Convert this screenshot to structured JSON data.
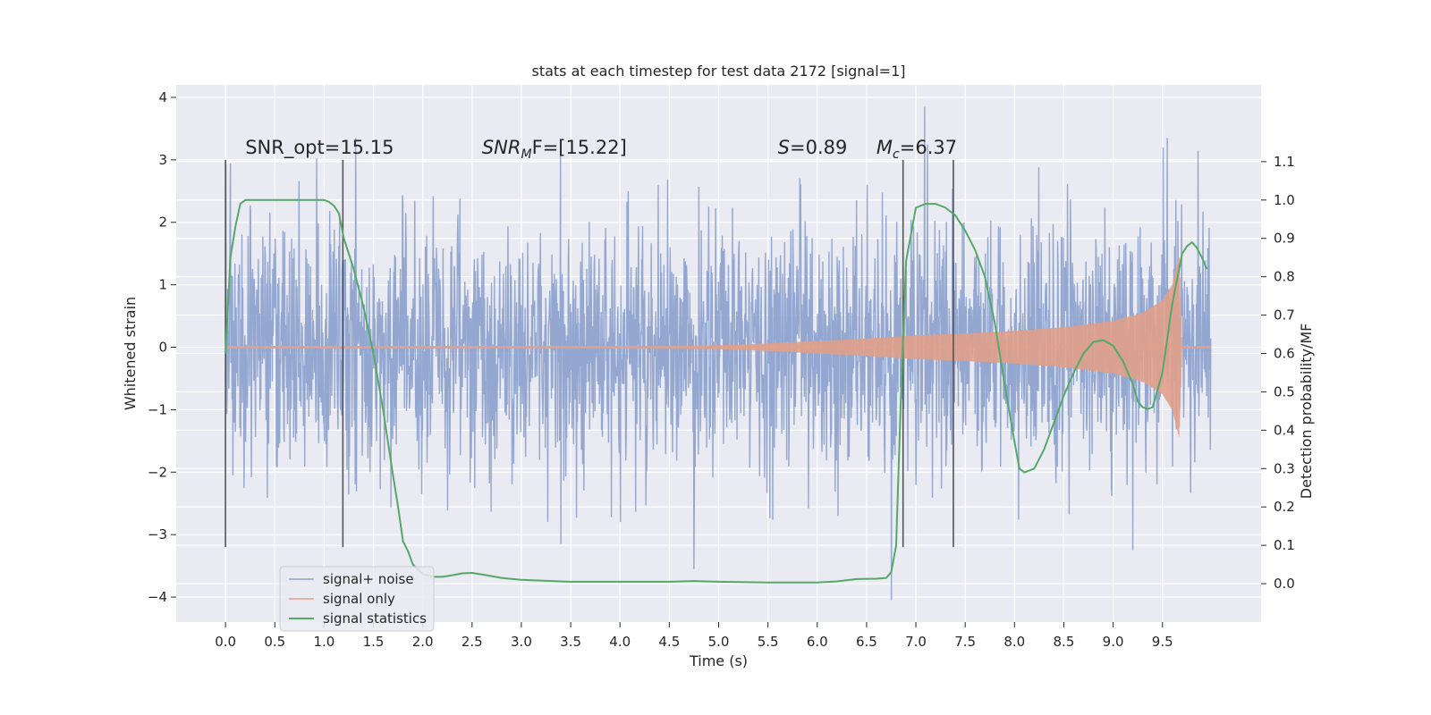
{
  "chart_data": {
    "type": "line",
    "title": "stats at each timestep for test data 2172 [signal=1]",
    "xlabel": "Time (s)",
    "ylabel": "Whitened strain",
    "ylabel_right": "Detection probability/MF",
    "xlim": [
      -0.5,
      10.5
    ],
    "ylim": [
      -4.4,
      4.2
    ],
    "ylim_right": [
      -0.1,
      1.3
    ],
    "x_ticks": [
      "0.0",
      "0.5",
      "1.0",
      "1.5",
      "2.0",
      "2.5",
      "3.0",
      "3.5",
      "4.0",
      "4.5",
      "5.0",
      "5.5",
      "6.0",
      "6.5",
      "7.0",
      "7.5",
      "8.0",
      "8.5",
      "9.0",
      "9.5"
    ],
    "x_tick_values": [
      0,
      0.5,
      1,
      1.5,
      2,
      2.5,
      3,
      3.5,
      4,
      4.5,
      5,
      5.5,
      6,
      6.5,
      7,
      7.5,
      8,
      8.5,
      9,
      9.5
    ],
    "y_ticks": [
      "4",
      "3",
      "2",
      "1",
      "0",
      "−1",
      "−2",
      "−3",
      "−4"
    ],
    "y_tick_values": [
      4,
      3,
      2,
      1,
      0,
      -1,
      -2,
      -3,
      -4
    ],
    "y_right_ticks": [
      "1.1",
      "1.0",
      "0.9",
      "0.8",
      "0.7",
      "0.6",
      "0.5",
      "0.4",
      "0.3",
      "0.2",
      "0.1",
      "0.0"
    ],
    "y_right_tick_values": [
      1.1,
      1.0,
      0.9,
      0.8,
      0.7,
      0.6,
      0.5,
      0.4,
      0.3,
      0.2,
      0.1,
      0.0
    ],
    "grid": true,
    "legend_position": "bottom-left",
    "annotations": [
      {
        "prefix": "SNR_opt=15.15",
        "italic": "",
        "sub": "",
        "suffix": "",
        "x": 0.2,
        "y": 3.1
      },
      {
        "prefix": "",
        "italic": "SNR",
        "sub": "M",
        "suffix": "F=[15.22]",
        "x": 2.6,
        "y": 3.1
      },
      {
        "prefix": "",
        "italic": "S",
        "sub": "",
        "suffix": "=0.89",
        "x": 5.6,
        "y": 3.1
      },
      {
        "prefix": "",
        "italic": "M",
        "sub": "c",
        "suffix": "=6.37",
        "x": 6.6,
        "y": 3.1
      }
    ],
    "vlines": [
      {
        "x": 0.0,
        "ymin": -3.2,
        "ymax": 3.0
      },
      {
        "x": 1.19,
        "ymin": -3.2,
        "ymax": 3.0
      },
      {
        "x": 6.87,
        "ymin": -3.2,
        "ymax": 3.0
      },
      {
        "x": 7.38,
        "ymin": -3.2,
        "ymax": 3.0
      }
    ],
    "series": [
      {
        "name": "signal+ noise",
        "color": "#8ea3cf",
        "axis": "left",
        "kind": "noise",
        "x_range": [
          0.0,
          9.99
        ],
        "typical_std": 1.0,
        "envelope_max": 3.35,
        "envelope_min": -2.8,
        "outliers": [
          {
            "x": 7.09,
            "y": 3.85
          },
          {
            "x": 6.75,
            "y": -4.05
          },
          {
            "x": 4.75,
            "y": -3.55
          },
          {
            "x": 3.4,
            "y": -3.15
          },
          {
            "x": 9.2,
            "y": -3.25
          },
          {
            "x": 1.32,
            "y": 3.35
          },
          {
            "x": 9.55,
            "y": 3.35
          }
        ]
      },
      {
        "name": "signal only",
        "color": "#e0a08a",
        "axis": "left",
        "kind": "chirp",
        "envelope": {
          "x": [
            0.0,
            4.0,
            5.0,
            5.5,
            6.0,
            6.5,
            7.0,
            7.5,
            8.0,
            8.5,
            9.0,
            9.3,
            9.5,
            9.6,
            9.67,
            9.7,
            10.0
          ],
          "amp": [
            0.02,
            0.02,
            0.03,
            0.06,
            0.1,
            0.14,
            0.19,
            0.22,
            0.26,
            0.32,
            0.42,
            0.55,
            0.75,
            1.0,
            1.45,
            0.02,
            0.02
          ]
        }
      },
      {
        "name": "signal statistics",
        "color": "#55a868",
        "axis": "right",
        "kind": "line",
        "x": [
          0.0,
          0.05,
          0.1,
          0.15,
          0.2,
          0.3,
          0.5,
          0.8,
          1.0,
          1.05,
          1.1,
          1.15,
          1.2,
          1.3,
          1.4,
          1.5,
          1.6,
          1.7,
          1.75,
          1.8,
          1.85,
          1.9,
          2.0,
          2.1,
          2.2,
          2.3,
          2.4,
          2.5,
          2.6,
          2.8,
          3.0,
          3.5,
          4.0,
          4.5,
          4.75,
          5.0,
          5.5,
          6.0,
          6.2,
          6.4,
          6.6,
          6.7,
          6.75,
          6.8,
          6.85,
          6.9,
          7.0,
          7.1,
          7.2,
          7.3,
          7.4,
          7.5,
          7.6,
          7.7,
          7.8,
          7.9,
          8.0,
          8.05,
          8.1,
          8.2,
          8.3,
          8.4,
          8.5,
          8.6,
          8.7,
          8.8,
          8.9,
          9.0,
          9.1,
          9.2,
          9.25,
          9.3,
          9.35,
          9.4,
          9.5,
          9.6,
          9.7,
          9.75,
          9.8,
          9.85,
          9.9,
          9.95
        ],
        "y": [
          0.6,
          0.85,
          0.93,
          0.99,
          1.0,
          1.0,
          1.0,
          1.0,
          1.0,
          0.995,
          0.985,
          0.965,
          0.9,
          0.82,
          0.72,
          0.6,
          0.45,
          0.28,
          0.2,
          0.11,
          0.085,
          0.05,
          0.025,
          0.018,
          0.018,
          0.022,
          0.027,
          0.028,
          0.024,
          0.015,
          0.01,
          0.005,
          0.005,
          0.005,
          0.007,
          0.005,
          0.003,
          0.003,
          0.006,
          0.012,
          0.013,
          0.015,
          0.03,
          0.1,
          0.5,
          0.84,
          0.98,
          0.99,
          0.99,
          0.98,
          0.96,
          0.92,
          0.87,
          0.8,
          0.68,
          0.52,
          0.37,
          0.3,
          0.29,
          0.3,
          0.35,
          0.42,
          0.49,
          0.55,
          0.6,
          0.63,
          0.635,
          0.62,
          0.58,
          0.52,
          0.475,
          0.46,
          0.455,
          0.46,
          0.55,
          0.73,
          0.86,
          0.88,
          0.89,
          0.875,
          0.85,
          0.82
        ]
      }
    ]
  }
}
